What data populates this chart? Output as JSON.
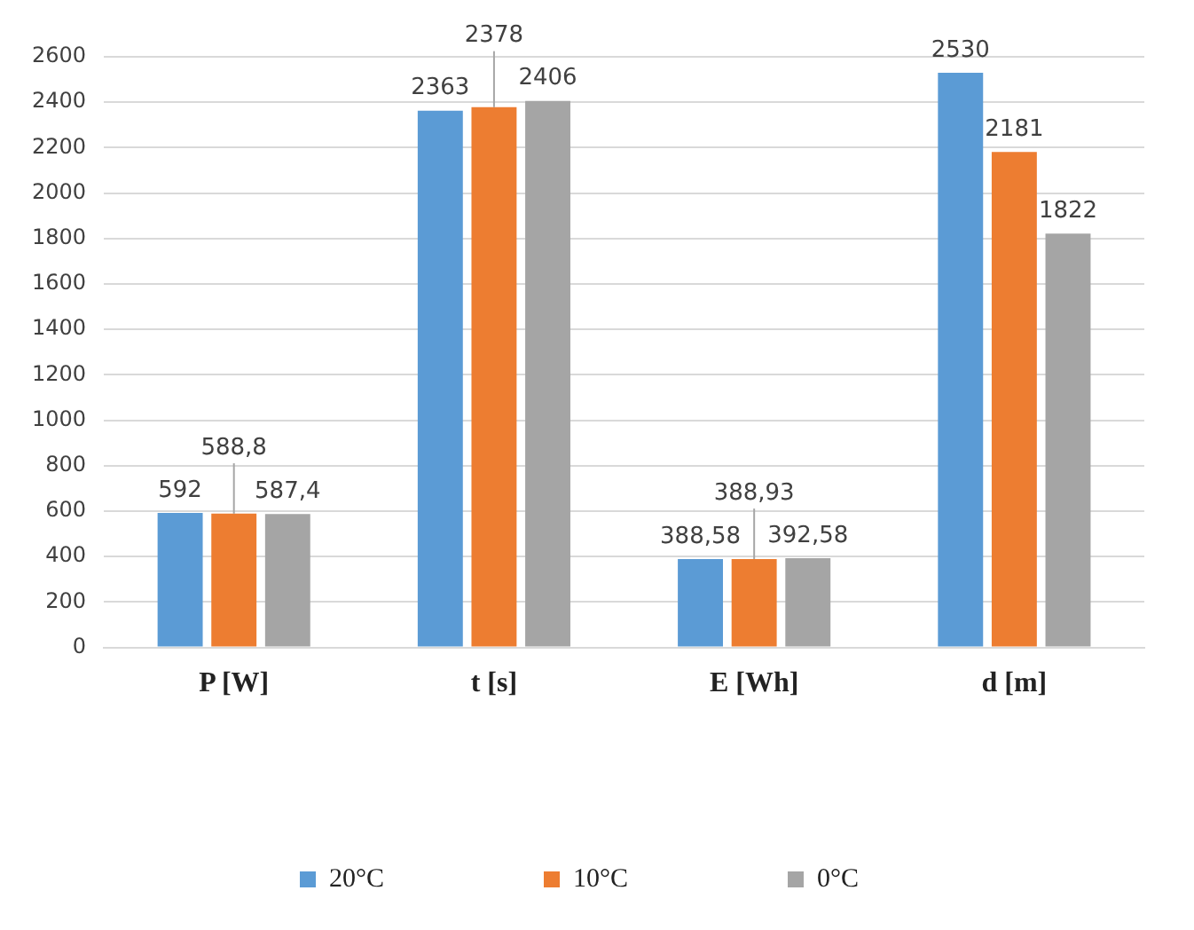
{
  "chart_data": {
    "type": "bar",
    "categories": [
      "P [W]",
      "t [s]",
      "E [Wh]",
      "d [m]"
    ],
    "series": [
      {
        "name": "20°C",
        "color": "#5b9bd5",
        "values": [
          592,
          2363,
          388.58,
          2530
        ],
        "value_labels": [
          "592",
          "2363",
          "388,58",
          "2530"
        ]
      },
      {
        "name": "10°C",
        "color": "#ed7d31",
        "values": [
          588.8,
          2378,
          388.93,
          2181
        ],
        "value_labels": [
          "588,8",
          "2378",
          "388,93",
          "2181"
        ]
      },
      {
        "name": "0°C",
        "color": "#a5a5a5",
        "values": [
          587.4,
          2406,
          392.58,
          1822
        ],
        "value_labels": [
          "587,4",
          "2406",
          "392,58",
          "1822"
        ]
      }
    ],
    "ylim": [
      0,
      2600
    ],
    "yticks": [
      0,
      200,
      400,
      600,
      800,
      1000,
      1200,
      1400,
      1600,
      1800,
      2000,
      2200,
      2400,
      2600
    ],
    "grid": "y",
    "legend": "bottom"
  }
}
